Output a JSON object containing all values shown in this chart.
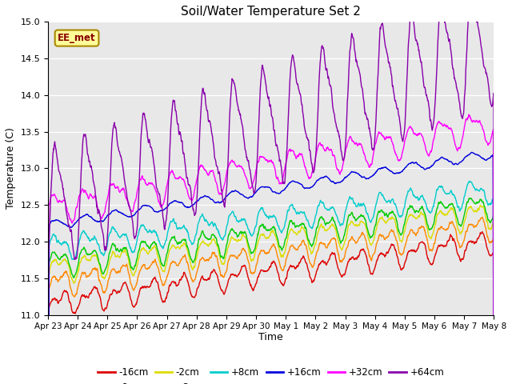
{
  "title": "Soil/Water Temperature Set 2",
  "xlabel": "Time",
  "ylabel": "Temperature (C)",
  "ylim": [
    11.0,
    15.0
  ],
  "yticks": [
    11.0,
    11.5,
    12.0,
    12.5,
    13.0,
    13.5,
    14.0,
    14.5,
    15.0
  ],
  "xtick_labels": [
    "Apr 23",
    "Apr 24",
    "Apr 25",
    "Apr 26",
    "Apr 27",
    "Apr 28",
    "Apr 29",
    "Apr 30",
    "May 1",
    "May 2",
    "May 3",
    "May 4",
    "May 5",
    "May 6",
    "May 7",
    "May 8"
  ],
  "series_colors": {
    "-16cm": "#dd0000",
    "-8cm": "#ff8800",
    "-2cm": "#dddd00",
    "+2cm": "#00cc00",
    "+8cm": "#00cccc",
    "+16cm": "#0000dd",
    "+32cm": "#ff00ff",
    "+64cm": "#8800aa"
  },
  "background_color": "#e8e8e8",
  "annotation_label": "EE_met",
  "annotation_bg": "#ffff99",
  "annotation_border": "#aa8800"
}
